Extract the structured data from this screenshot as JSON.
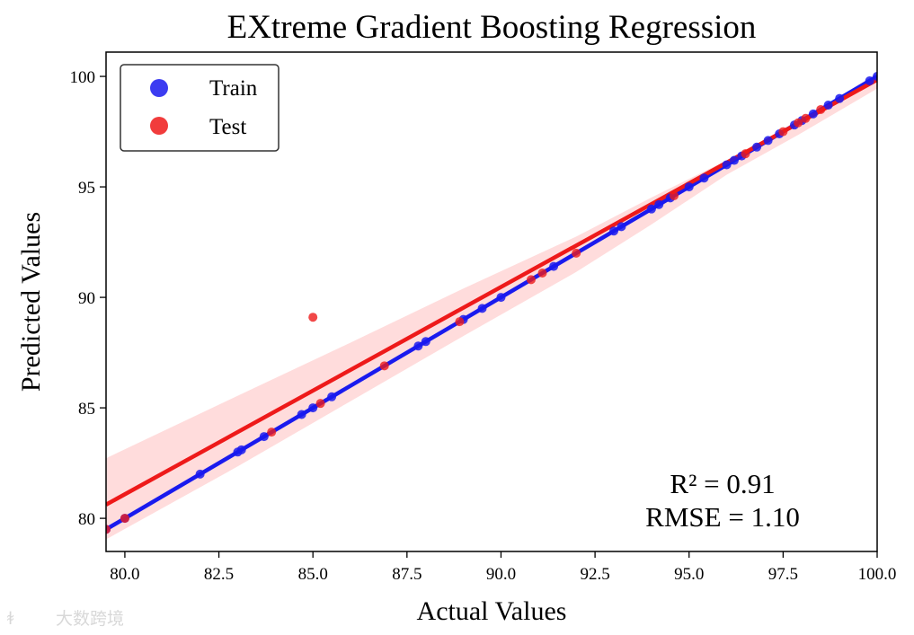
{
  "chart_data": {
    "type": "scatter",
    "title": "EXtreme Gradient Boosting Regression",
    "xlabel": "Actual Values",
    "ylabel": "Predicted Values",
    "xlim": [
      79.5,
      100.0
    ],
    "ylim": [
      78.5,
      101.1
    ],
    "xticks": [
      80.0,
      82.5,
      85.0,
      87.5,
      90.0,
      92.5,
      95.0,
      97.5,
      100.0
    ],
    "xtick_labels": [
      "80.0",
      "82.5",
      "85.0",
      "87.5",
      "90.0",
      "92.5",
      "95.0",
      "97.5",
      "100.0"
    ],
    "yticks": [
      80,
      85,
      90,
      95,
      100
    ],
    "ytick_labels": [
      "80",
      "85",
      "90",
      "95",
      "100"
    ],
    "legend": {
      "position": "upper-left",
      "entries": [
        "Train",
        "Test"
      ]
    },
    "series": [
      {
        "name": "Train",
        "color": "#1a1aee",
        "x": [
          79.5,
          80.0,
          82.0,
          83.0,
          83.1,
          83.7,
          84.7,
          85.0,
          85.5,
          87.8,
          88.0,
          89.0,
          89.5,
          90.0,
          91.4,
          93.0,
          93.2,
          94.0,
          94.2,
          94.5,
          95.0,
          95.4,
          96.0,
          96.2,
          96.4,
          96.8,
          97.1,
          97.4,
          97.8,
          98.0,
          98.3,
          98.7,
          99.0,
          99.8,
          100.0
        ],
        "y": [
          79.5,
          80.0,
          82.0,
          83.0,
          83.1,
          83.7,
          84.7,
          85.0,
          85.5,
          87.8,
          88.0,
          89.0,
          89.5,
          90.0,
          91.4,
          93.0,
          93.2,
          94.0,
          94.2,
          94.5,
          95.0,
          95.4,
          96.0,
          96.2,
          96.4,
          96.8,
          97.1,
          97.4,
          97.8,
          98.0,
          98.3,
          98.7,
          99.0,
          99.8,
          100.0
        ],
        "fit": {
          "x": [
            79.5,
            100.0
          ],
          "y": [
            79.5,
            100.0
          ]
        }
      },
      {
        "name": "Test",
        "color": "#ee1a1a",
        "x": [
          79.5,
          80.0,
          83.9,
          85.0,
          85.2,
          86.9,
          88.9,
          90.8,
          91.1,
          92.0,
          94.6,
          96.5,
          97.5,
          97.9,
          98.1,
          98.5
        ],
        "y": [
          79.5,
          80.0,
          83.9,
          89.1,
          85.2,
          86.9,
          88.9,
          90.8,
          91.1,
          92.0,
          94.6,
          96.5,
          97.5,
          97.9,
          98.1,
          98.5
        ],
        "fit": {
          "x": [
            79.5,
            100.0
          ],
          "y": [
            80.62,
            99.85
          ]
        },
        "confidence_band": {
          "x": [
            79.5,
            83.0,
            86.0,
            89.0,
            92.0,
            94.0,
            96.0,
            98.0,
            100.0
          ],
          "upper": [
            82.72,
            85.55,
            87.95,
            90.4,
            92.75,
            94.52,
            96.2,
            98.02,
            100.15
          ],
          "lower": [
            79.05,
            82.35,
            85.3,
            88.25,
            91.15,
            93.3,
            95.55,
            97.45,
            99.45
          ]
        }
      }
    ],
    "annotations": [
      "R² = 0.91",
      "RMSE = 1.10"
    ]
  },
  "watermark": "大数跨境"
}
